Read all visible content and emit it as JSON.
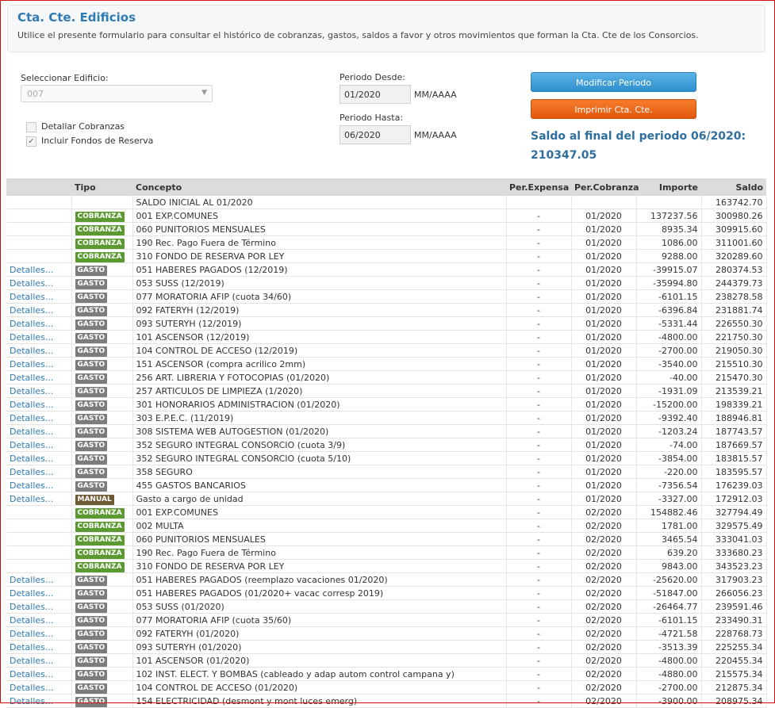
{
  "header": {
    "title": "Cta. Cte. Edificios",
    "description": "Utilice el presente formulario para consultar el histórico de cobranzas, gastos, saldos a favor y otros movimientos que forman la Cta. Cte de los Consorcios."
  },
  "form": {
    "edificio_label": "Seleccionar Edificio:",
    "edificio_value": "007",
    "detallar_cobranzas_label": "Detallar Cobranzas",
    "detallar_cobranzas_checked": false,
    "incluir_fondos_label": "Incluir Fondos de Reserva",
    "incluir_fondos_checked": true,
    "periodo_desde_label": "Periodo Desde:",
    "periodo_desde_value": "01/2020",
    "periodo_hasta_label": "Periodo Hasta:",
    "periodo_hasta_value": "06/2020",
    "format_hint": "MM/AAAA",
    "modificar_label": "Modificar Periodo",
    "imprimir_label": "Imprimir Cta. Cte.",
    "saldo_final_text": "Saldo al final del periodo 06/2020:",
    "saldo_final_value": "210347.05"
  },
  "colors": {
    "accent": "#2f7bb5",
    "cobranza": "#5b9a31",
    "gasto": "#7c7c7c",
    "manual": "#6e5a32",
    "btn_blue": "#3a99d8",
    "btn_orange": "#ee6a1e"
  },
  "table": {
    "headers": [
      "",
      "Tipo",
      "Concepto",
      "Per.Expensa",
      "Per.Cobranza",
      "Importe",
      "Saldo"
    ],
    "detail_label": "Detalles...",
    "rows": [
      {
        "det": "",
        "tipo": "",
        "concepto": "SALDO INICIAL AL 01/2020",
        "perexp": "",
        "percob": "",
        "importe": "",
        "saldo": "163742.70"
      },
      {
        "det": "",
        "tipo": "COBRANZA",
        "concepto": "001 EXP.COMUNES",
        "perexp": "-",
        "percob": "01/2020",
        "importe": "137237.56",
        "saldo": "300980.26",
        "sep": true
      },
      {
        "det": "",
        "tipo": "COBRANZA",
        "concepto": "060 PUNITORIOS MENSUALES",
        "perexp": "-",
        "percob": "01/2020",
        "importe": "8935.34",
        "saldo": "309915.60"
      },
      {
        "det": "",
        "tipo": "COBRANZA",
        "concepto": "190 Rec. Pago Fuera de Término",
        "perexp": "-",
        "percob": "01/2020",
        "importe": "1086.00",
        "saldo": "311001.60"
      },
      {
        "det": "",
        "tipo": "COBRANZA",
        "concepto": "310 FONDO DE RESERVA POR LEY",
        "perexp": "-",
        "percob": "01/2020",
        "importe": "9288.00",
        "saldo": "320289.60"
      },
      {
        "det": "Detalles...",
        "tipo": "GASTO",
        "concepto": "051 HABERES PAGADOS (12/2019)",
        "perexp": "-",
        "percob": "01/2020",
        "importe": "-39915.07",
        "saldo": "280374.53"
      },
      {
        "det": "Detalles...",
        "tipo": "GASTO",
        "concepto": "053 SUSS (12/2019)",
        "perexp": "-",
        "percob": "01/2020",
        "importe": "-35994.80",
        "saldo": "244379.73"
      },
      {
        "det": "Detalles...",
        "tipo": "GASTO",
        "concepto": "077 MORATORIA AFIP (cuota 34/60)",
        "perexp": "-",
        "percob": "01/2020",
        "importe": "-6101.15",
        "saldo": "238278.58"
      },
      {
        "det": "Detalles...",
        "tipo": "GASTO",
        "concepto": "092 FATERYH (12/2019)",
        "perexp": "-",
        "percob": "01/2020",
        "importe": "-6396.84",
        "saldo": "231881.74"
      },
      {
        "det": "Detalles...",
        "tipo": "GASTO",
        "concepto": "093 SUTERYH (12/2019)",
        "perexp": "-",
        "percob": "01/2020",
        "importe": "-5331.44",
        "saldo": "226550.30"
      },
      {
        "det": "Detalles...",
        "tipo": "GASTO",
        "concepto": "101 ASCENSOR (12/2019)",
        "perexp": "-",
        "percob": "01/2020",
        "importe": "-4800.00",
        "saldo": "221750.30"
      },
      {
        "det": "Detalles...",
        "tipo": "GASTO",
        "concepto": "104 CONTROL DE ACCESO (12/2019)",
        "perexp": "-",
        "percob": "01/2020",
        "importe": "-2700.00",
        "saldo": "219050.30"
      },
      {
        "det": "Detalles...",
        "tipo": "GASTO",
        "concepto": "151 ASCENSOR (compra acrilico 2mm)",
        "perexp": "-",
        "percob": "01/2020",
        "importe": "-3540.00",
        "saldo": "215510.30"
      },
      {
        "det": "Detalles...",
        "tipo": "GASTO",
        "concepto": "256 ART. LIBRERIA Y FOTOCOPIAS (01/2020)",
        "perexp": "-",
        "percob": "01/2020",
        "importe": "-40.00",
        "saldo": "215470.30"
      },
      {
        "det": "Detalles...",
        "tipo": "GASTO",
        "concepto": "257 ARTICULOS DE LIMPIEZA (1/2020)",
        "perexp": "-",
        "percob": "01/2020",
        "importe": "-1931.09",
        "saldo": "213539.21"
      },
      {
        "det": "Detalles...",
        "tipo": "GASTO",
        "concepto": "301 HONORARIOS ADMINISTRACION (01/2020)",
        "perexp": "-",
        "percob": "01/2020",
        "importe": "-15200.00",
        "saldo": "198339.21"
      },
      {
        "det": "Detalles...",
        "tipo": "GASTO",
        "concepto": "303 E.P.E.C. (11/2019)",
        "perexp": "-",
        "percob": "01/2020",
        "importe": "-9392.40",
        "saldo": "188946.81"
      },
      {
        "det": "Detalles...",
        "tipo": "GASTO",
        "concepto": "308 SISTEMA WEB AUTOGESTION (01/2020)",
        "perexp": "-",
        "percob": "01/2020",
        "importe": "-1203.24",
        "saldo": "187743.57"
      },
      {
        "det": "Detalles...",
        "tipo": "GASTO",
        "concepto": "352 SEGURO INTEGRAL CONSORCIO (cuota 3/9)",
        "perexp": "-",
        "percob": "01/2020",
        "importe": "-74.00",
        "saldo": "187669.57"
      },
      {
        "det": "Detalles...",
        "tipo": "GASTO",
        "concepto": "352 SEGURO INTEGRAL CONSORCIO (cuota 5/10)",
        "perexp": "-",
        "percob": "01/2020",
        "importe": "-3854.00",
        "saldo": "183815.57"
      },
      {
        "det": "Detalles...",
        "tipo": "GASTO",
        "concepto": "358 SEGURO",
        "perexp": "-",
        "percob": "01/2020",
        "importe": "-220.00",
        "saldo": "183595.57"
      },
      {
        "det": "Detalles...",
        "tipo": "GASTO",
        "concepto": "455 GASTOS BANCARIOS",
        "perexp": "-",
        "percob": "01/2020",
        "importe": "-7356.54",
        "saldo": "176239.03"
      },
      {
        "det": "Detalles...",
        "tipo": "MANUAL",
        "concepto": "Gasto a cargo de unidad",
        "perexp": "-",
        "percob": "01/2020",
        "importe": "-3327.00",
        "saldo": "172912.03"
      },
      {
        "det": "",
        "tipo": "COBRANZA",
        "concepto": "001 EXP.COMUNES",
        "perexp": "-",
        "percob": "02/2020",
        "importe": "154882.46",
        "saldo": "327794.49",
        "sep": true
      },
      {
        "det": "",
        "tipo": "COBRANZA",
        "concepto": "002 MULTA",
        "perexp": "-",
        "percob": "02/2020",
        "importe": "1781.00",
        "saldo": "329575.49"
      },
      {
        "det": "",
        "tipo": "COBRANZA",
        "concepto": "060 PUNITORIOS MENSUALES",
        "perexp": "-",
        "percob": "02/2020",
        "importe": "3465.54",
        "saldo": "333041.03"
      },
      {
        "det": "",
        "tipo": "COBRANZA",
        "concepto": "190 Rec. Pago Fuera de Término",
        "perexp": "-",
        "percob": "02/2020",
        "importe": "639.20",
        "saldo": "333680.23"
      },
      {
        "det": "",
        "tipo": "COBRANZA",
        "concepto": "310 FONDO DE RESERVA POR LEY",
        "perexp": "-",
        "percob": "02/2020",
        "importe": "9843.00",
        "saldo": "343523.23"
      },
      {
        "det": "Detalles...",
        "tipo": "GASTO",
        "concepto": "051 HABERES PAGADOS (reemplazo vacaciones 01/2020)",
        "perexp": "-",
        "percob": "02/2020",
        "importe": "-25620.00",
        "saldo": "317903.23"
      },
      {
        "det": "Detalles...",
        "tipo": "GASTO",
        "concepto": "051 HABERES PAGADOS (01/2020+ vacac corresp 2019)",
        "perexp": "-",
        "percob": "02/2020",
        "importe": "-51847.00",
        "saldo": "266056.23"
      },
      {
        "det": "Detalles...",
        "tipo": "GASTO",
        "concepto": "053 SUSS (01/2020)",
        "perexp": "-",
        "percob": "02/2020",
        "importe": "-26464.77",
        "saldo": "239591.46"
      },
      {
        "det": "Detalles...",
        "tipo": "GASTO",
        "concepto": "077 MORATORIA AFIP (cuota 35/60)",
        "perexp": "-",
        "percob": "02/2020",
        "importe": "-6101.15",
        "saldo": "233490.31"
      },
      {
        "det": "Detalles...",
        "tipo": "GASTO",
        "concepto": "092 FATERYH (01/2020)",
        "perexp": "-",
        "percob": "02/2020",
        "importe": "-4721.58",
        "saldo": "228768.73"
      },
      {
        "det": "Detalles...",
        "tipo": "GASTO",
        "concepto": "093 SUTERYH (01/2020)",
        "perexp": "-",
        "percob": "02/2020",
        "importe": "-3513.39",
        "saldo": "225255.34"
      },
      {
        "det": "Detalles...",
        "tipo": "GASTO",
        "concepto": "101 ASCENSOR (01/2020)",
        "perexp": "-",
        "percob": "02/2020",
        "importe": "-4800.00",
        "saldo": "220455.34"
      },
      {
        "det": "Detalles...",
        "tipo": "GASTO",
        "concepto": "102 INST. ELECT. Y BOMBAS (cableado y adap autom control campana y)",
        "perexp": "-",
        "percob": "02/2020",
        "importe": "-4880.00",
        "saldo": "215575.34"
      },
      {
        "det": "Detalles...",
        "tipo": "GASTO",
        "concepto": "104 CONTROL DE ACCESO (01/2020)",
        "perexp": "-",
        "percob": "02/2020",
        "importe": "-2700.00",
        "saldo": "212875.34"
      },
      {
        "det": "Detalles...",
        "tipo": "GASTO",
        "concepto": "154 ELECTRICIDAD (desmont y mont luces emerg)",
        "perexp": "-",
        "percob": "02/2020",
        "importe": "-3900.00",
        "saldo": "208975.34"
      }
    ]
  }
}
